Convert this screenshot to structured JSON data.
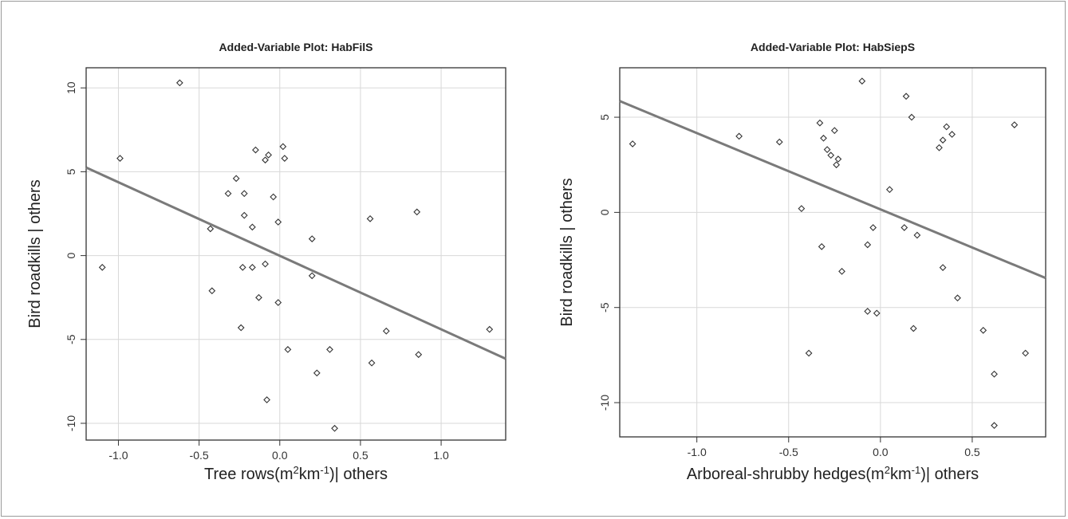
{
  "chart_data": [
    {
      "type": "scatter",
      "title": "Added-Variable Plot: HabFilS",
      "xlabel": {
        "main": "Tree rows(m",
        "sup1": "2",
        "mid": "km",
        "sup2": "-1",
        "end": ")| others"
      },
      "ylabel": "Bird roadkills | others",
      "xlim": [
        -1.2,
        1.4
      ],
      "ylim": [
        -11.0,
        11.2
      ],
      "xticks": [
        -1.0,
        -0.5,
        0.0,
        0.5,
        1.0
      ],
      "xtick_labels": [
        "-1.0",
        "-0.5",
        "0.0",
        "0.5",
        "1.0"
      ],
      "yticks": [
        -10,
        -5,
        0,
        5,
        10
      ],
      "ytick_labels": [
        "-10",
        "-5",
        "0",
        "5",
        "10"
      ],
      "grid": true,
      "fit_line": {
        "x": [
          -1.2,
          1.4
        ],
        "y": [
          5.25,
          -6.15
        ]
      },
      "points": [
        {
          "x": -1.1,
          "y": -0.7
        },
        {
          "x": -0.99,
          "y": 5.8
        },
        {
          "x": -0.62,
          "y": 10.3
        },
        {
          "x": -0.43,
          "y": 1.6
        },
        {
          "x": -0.42,
          "y": -2.1
        },
        {
          "x": -0.32,
          "y": 3.7
        },
        {
          "x": -0.27,
          "y": 4.6
        },
        {
          "x": -0.24,
          "y": -4.3
        },
        {
          "x": -0.23,
          "y": -0.7
        },
        {
          "x": -0.22,
          "y": 3.7
        },
        {
          "x": -0.22,
          "y": 2.4
        },
        {
          "x": -0.17,
          "y": -0.7
        },
        {
          "x": -0.17,
          "y": 1.7
        },
        {
          "x": -0.15,
          "y": 6.3
        },
        {
          "x": -0.13,
          "y": -2.5
        },
        {
          "x": -0.09,
          "y": 5.7
        },
        {
          "x": -0.09,
          "y": -0.5
        },
        {
          "x": -0.08,
          "y": -8.6
        },
        {
          "x": -0.07,
          "y": 6.0
        },
        {
          "x": -0.04,
          "y": 3.5
        },
        {
          "x": -0.01,
          "y": 2.0
        },
        {
          "x": -0.01,
          "y": -2.8
        },
        {
          "x": 0.02,
          "y": 6.5
        },
        {
          "x": 0.03,
          "y": 5.8
        },
        {
          "x": 0.05,
          "y": -5.6
        },
        {
          "x": 0.2,
          "y": 1.0
        },
        {
          "x": 0.2,
          "y": -1.2
        },
        {
          "x": 0.23,
          "y": -7.0
        },
        {
          "x": 0.31,
          "y": -5.6
        },
        {
          "x": 0.34,
          "y": -10.3
        },
        {
          "x": 0.56,
          "y": 2.2
        },
        {
          "x": 0.57,
          "y": -6.4
        },
        {
          "x": 0.66,
          "y": -4.5
        },
        {
          "x": 0.85,
          "y": 2.6
        },
        {
          "x": 0.86,
          "y": -5.9
        },
        {
          "x": 1.3,
          "y": -4.4
        }
      ]
    },
    {
      "type": "scatter",
      "title": "Added-Variable Plot: HabSiepS",
      "xlabel": {
        "main": "Arboreal-shrubby hedges(m",
        "sup1": "2",
        "mid": "km",
        "sup2": "-1",
        "end": ")| others"
      },
      "ylabel": "Bird roadkills | others",
      "xlim": [
        -1.42,
        0.9
      ],
      "ylim": [
        -11.8,
        7.6
      ],
      "xticks": [
        -1.0,
        -0.5,
        0.0,
        0.5
      ],
      "xtick_labels": [
        "-1.0",
        "-0.5",
        "0.0",
        "0.5"
      ],
      "yticks": [
        -10,
        -5,
        0,
        5
      ],
      "ytick_labels": [
        "-10",
        "-5",
        "0",
        "5"
      ],
      "grid": true,
      "fit_line": {
        "x": [
          -1.42,
          0.9
        ],
        "y": [
          5.85,
          -3.45
        ]
      },
      "points": [
        {
          "x": -1.35,
          "y": 3.6
        },
        {
          "x": -0.77,
          "y": 4.0
        },
        {
          "x": -0.55,
          "y": 3.7
        },
        {
          "x": -0.43,
          "y": 0.2
        },
        {
          "x": -0.39,
          "y": -7.4
        },
        {
          "x": -0.33,
          "y": 4.7
        },
        {
          "x": -0.32,
          "y": -1.8
        },
        {
          "x": -0.31,
          "y": 3.9
        },
        {
          "x": -0.29,
          "y": 3.3
        },
        {
          "x": -0.27,
          "y": 3.0
        },
        {
          "x": -0.25,
          "y": 4.3
        },
        {
          "x": -0.24,
          "y": 2.5
        },
        {
          "x": -0.23,
          "y": 2.8
        },
        {
          "x": -0.21,
          "y": -3.1
        },
        {
          "x": -0.1,
          "y": 6.9
        },
        {
          "x": -0.07,
          "y": -5.2
        },
        {
          "x": -0.07,
          "y": -1.7
        },
        {
          "x": -0.04,
          "y": -0.8
        },
        {
          "x": -0.02,
          "y": -5.3
        },
        {
          "x": 0.05,
          "y": 1.2
        },
        {
          "x": 0.13,
          "y": -0.8
        },
        {
          "x": 0.14,
          "y": 6.1
        },
        {
          "x": 0.17,
          "y": 5.0
        },
        {
          "x": 0.18,
          "y": -6.1
        },
        {
          "x": 0.2,
          "y": -1.2
        },
        {
          "x": 0.32,
          "y": 3.4
        },
        {
          "x": 0.34,
          "y": 3.8
        },
        {
          "x": 0.34,
          "y": -2.9
        },
        {
          "x": 0.36,
          "y": 4.5
        },
        {
          "x": 0.39,
          "y": 4.1
        },
        {
          "x": 0.42,
          "y": -4.5
        },
        {
          "x": 0.56,
          "y": -6.2
        },
        {
          "x": 0.62,
          "y": -8.5
        },
        {
          "x": 0.62,
          "y": -11.2
        },
        {
          "x": 0.73,
          "y": 4.6
        },
        {
          "x": 0.79,
          "y": -7.4
        }
      ]
    }
  ]
}
